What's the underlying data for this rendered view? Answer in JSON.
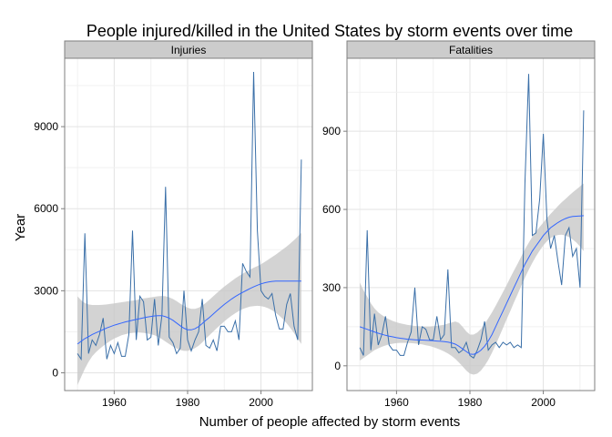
{
  "chart_data": {
    "type": "line",
    "title": "People injured/killed in the United States by storm events over time",
    "xlabel": "Number of people affected by storm events",
    "ylabel": "Year",
    "grid": true,
    "colors": {
      "line": "#3a6fa8",
      "smooth": "#3366ff",
      "ribbon": "#c8c8c8",
      "strip": "#cccccc",
      "grid": "#e8e8e8",
      "frame": "#7f7f7f"
    },
    "panels": [
      {
        "strip": "Injuries",
        "xlim": [
          1946.5,
          2014
        ],
        "ylim": [
          -650,
          11500
        ],
        "x_ticks": [
          "1960",
          "1980",
          "2000"
        ],
        "y_ticks": [
          "0",
          "3000",
          "6000",
          "9000"
        ],
        "x": [
          1950,
          1951,
          1952,
          1953,
          1954,
          1955,
          1956,
          1957,
          1958,
          1959,
          1960,
          1961,
          1962,
          1963,
          1964,
          1965,
          1966,
          1967,
          1968,
          1969,
          1970,
          1971,
          1972,
          1973,
          1974,
          1975,
          1976,
          1977,
          1978,
          1979,
          1980,
          1981,
          1982,
          1983,
          1984,
          1985,
          1986,
          1987,
          1988,
          1989,
          1990,
          1991,
          1992,
          1993,
          1994,
          1995,
          1996,
          1997,
          1998,
          1999,
          2000,
          2001,
          2002,
          2003,
          2004,
          2005,
          2006,
          2007,
          2008,
          2009,
          2010,
          2011
        ],
        "values": [
          700,
          500,
          5100,
          700,
          1200,
          1000,
          1400,
          2000,
          500,
          1000,
          700,
          1100,
          600,
          600,
          1400,
          5200,
          1200,
          2800,
          2600,
          1200,
          1300,
          2700,
          1000,
          2100,
          6800,
          1300,
          1100,
          700,
          900,
          3000,
          1200,
          800,
          1200,
          1500,
          2700,
          1000,
          900,
          1200,
          800,
          1700,
          1700,
          1500,
          1500,
          1900,
          1200,
          4000,
          3700,
          3500,
          11000,
          5200,
          3000,
          2800,
          2700,
          2900,
          2100,
          1600,
          1600,
          2500,
          2900,
          1700,
          1200,
          7800
        ],
        "smooth": [
          1050,
          1150,
          1250,
          1320,
          1400,
          1460,
          1520,
          1580,
          1640,
          1690,
          1740,
          1780,
          1820,
          1860,
          1890,
          1920,
          1950,
          1980,
          2010,
          2040,
          2060,
          2080,
          2090,
          2090,
          2050,
          2000,
          1920,
          1820,
          1720,
          1630,
          1570,
          1570,
          1610,
          1690,
          1800,
          1920,
          2030,
          2150,
          2270,
          2390,
          2500,
          2600,
          2700,
          2790,
          2870,
          2940,
          3010,
          3080,
          3140,
          3200,
          3250,
          3290,
          3320,
          3340,
          3350,
          3350,
          3350,
          3350,
          3350,
          3350,
          3350,
          3350
        ],
        "ribbon_lo": [
          -450,
          -150,
          150,
          400,
          600,
          750,
          870,
          980,
          1080,
          1170,
          1250,
          1310,
          1370,
          1410,
          1440,
          1460,
          1470,
          1470,
          1460,
          1440,
          1410,
          1370,
          1310,
          1230,
          1140,
          1050,
          960,
          890,
          830,
          800,
          800,
          840,
          900,
          990,
          1110,
          1250,
          1380,
          1510,
          1640,
          1760,
          1880,
          1990,
          2090,
          2180,
          2260,
          2330,
          2380,
          2420,
          2440,
          2450,
          2440,
          2410,
          2360,
          2290,
          2200,
          2090,
          1960,
          1810,
          1640,
          1450,
          1250,
          1050
        ],
        "ribbon_hi": [
          2800,
          2650,
          2550,
          2500,
          2480,
          2480,
          2480,
          2490,
          2500,
          2520,
          2540,
          2560,
          2580,
          2600,
          2620,
          2640,
          2660,
          2690,
          2720,
          2740,
          2760,
          2780,
          2800,
          2810,
          2800,
          2760,
          2700,
          2620,
          2530,
          2450,
          2380,
          2340,
          2340,
          2380,
          2460,
          2560,
          2680,
          2800,
          2920,
          3040,
          3150,
          3250,
          3350,
          3450,
          3540,
          3620,
          3700,
          3770,
          3840,
          3900,
          3970,
          4050,
          4140,
          4230,
          4320,
          4420,
          4520,
          4620,
          4730,
          4850,
          4980,
          5120
        ]
      },
      {
        "strip": "Fatalities",
        "xlim": [
          1946.5,
          2014
        ],
        "ylim": [
          -95,
          1180
        ],
        "x_ticks": [
          "1960",
          "1980",
          "2000"
        ],
        "y_ticks": [
          "0",
          "300",
          "600",
          "900"
        ],
        "x": [
          1950,
          1951,
          1952,
          1953,
          1954,
          1955,
          1956,
          1957,
          1958,
          1959,
          1960,
          1961,
          1962,
          1963,
          1964,
          1965,
          1966,
          1967,
          1968,
          1969,
          1970,
          1971,
          1972,
          1973,
          1974,
          1975,
          1976,
          1977,
          1978,
          1979,
          1980,
          1981,
          1982,
          1983,
          1984,
          1985,
          1986,
          1987,
          1988,
          1989,
          1990,
          1991,
          1992,
          1993,
          1994,
          1995,
          1996,
          1997,
          1998,
          1999,
          2000,
          2001,
          2002,
          2003,
          2004,
          2005,
          2006,
          2007,
          2008,
          2009,
          2010,
          2011
        ],
        "values": [
          70,
          40,
          520,
          60,
          200,
          80,
          120,
          190,
          80,
          60,
          60,
          40,
          40,
          90,
          130,
          300,
          80,
          150,
          140,
          100,
          100,
          190,
          100,
          120,
          370,
          70,
          70,
          50,
          60,
          90,
          40,
          30,
          60,
          100,
          170,
          60,
          80,
          90,
          70,
          90,
          80,
          90,
          70,
          80,
          70,
          700,
          1120,
          500,
          510,
          640,
          890,
          560,
          450,
          500,
          400,
          310,
          500,
          530,
          420,
          450,
          300,
          980
        ],
        "smooth": [
          150,
          145,
          140,
          135,
          130,
          125,
          121,
          117,
          114,
          111,
          108,
          106,
          104,
          102,
          101,
          100,
          99,
          99,
          98,
          97,
          96,
          95,
          94,
          93,
          91,
          88,
          83,
          75,
          65,
          55,
          45,
          44,
          50,
          60,
          75,
          95,
          120,
          150,
          180,
          210,
          240,
          270,
          300,
          330,
          360,
          390,
          415,
          440,
          460,
          480,
          500,
          515,
          530,
          540,
          550,
          558,
          565,
          570,
          573,
          574,
          575,
          576
        ],
        "ribbon_lo": [
          20,
          30,
          40,
          50,
          60,
          67,
          73,
          78,
          82,
          85,
          87,
          88,
          88,
          88,
          87,
          86,
          84,
          82,
          79,
          76,
          72,
          67,
          61,
          55,
          47,
          38,
          27,
          13,
          -2,
          -18,
          -30,
          -34,
          -30,
          -18,
          0,
          22,
          50,
          80,
          112,
          145,
          178,
          210,
          243,
          275,
          307,
          338,
          368,
          395,
          420,
          442,
          462,
          478,
          490,
          498,
          502,
          503,
          500,
          494,
          485,
          473,
          458,
          440
        ],
        "ribbon_hi": [
          320,
          290,
          265,
          240,
          220,
          205,
          195,
          185,
          178,
          172,
          167,
          163,
          160,
          157,
          155,
          153,
          152,
          151,
          151,
          151,
          152,
          153,
          155,
          158,
          162,
          166,
          170,
          165,
          150,
          132,
          120,
          120,
          128,
          142,
          160,
          182,
          205,
          230,
          256,
          283,
          310,
          338,
          365,
          392,
          420,
          447,
          472,
          495,
          515,
          533,
          550,
          567,
          583,
          598,
          613,
          627,
          640,
          653,
          665,
          677,
          688,
          700
        ]
      }
    ]
  }
}
